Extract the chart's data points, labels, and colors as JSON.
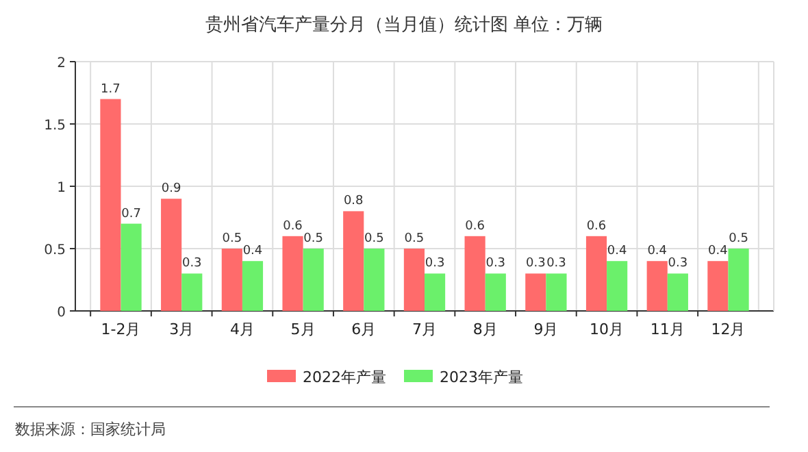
{
  "chart_data": {
    "type": "bar",
    "title": "贵州省汽车产量分月（当月值）统计图 单位：万辆",
    "categories": [
      "1-2月",
      "3月",
      "4月",
      "5月",
      "6月",
      "7月",
      "8月",
      "9月",
      "10月",
      "11月",
      "12月"
    ],
    "series": [
      {
        "name": "2022年产量",
        "color": "#ff6b6b",
        "values": [
          1.7,
          0.9,
          0.5,
          0.6,
          0.8,
          0.5,
          0.6,
          0.3,
          0.6,
          0.4,
          0.4
        ]
      },
      {
        "name": "2023年产量",
        "color": "#6bf06b",
        "values": [
          0.7,
          0.3,
          0.4,
          0.5,
          0.5,
          0.3,
          0.3,
          0.3,
          0.4,
          0.3,
          0.5
        ]
      }
    ],
    "ylim": [
      0,
      2
    ],
    "yticks": [
      0,
      0.5,
      1,
      1.5,
      2
    ],
    "grid": true,
    "legend": "bottom",
    "data_labels": true,
    "annotations": [
      "数据来源：国家统计局"
    ]
  }
}
